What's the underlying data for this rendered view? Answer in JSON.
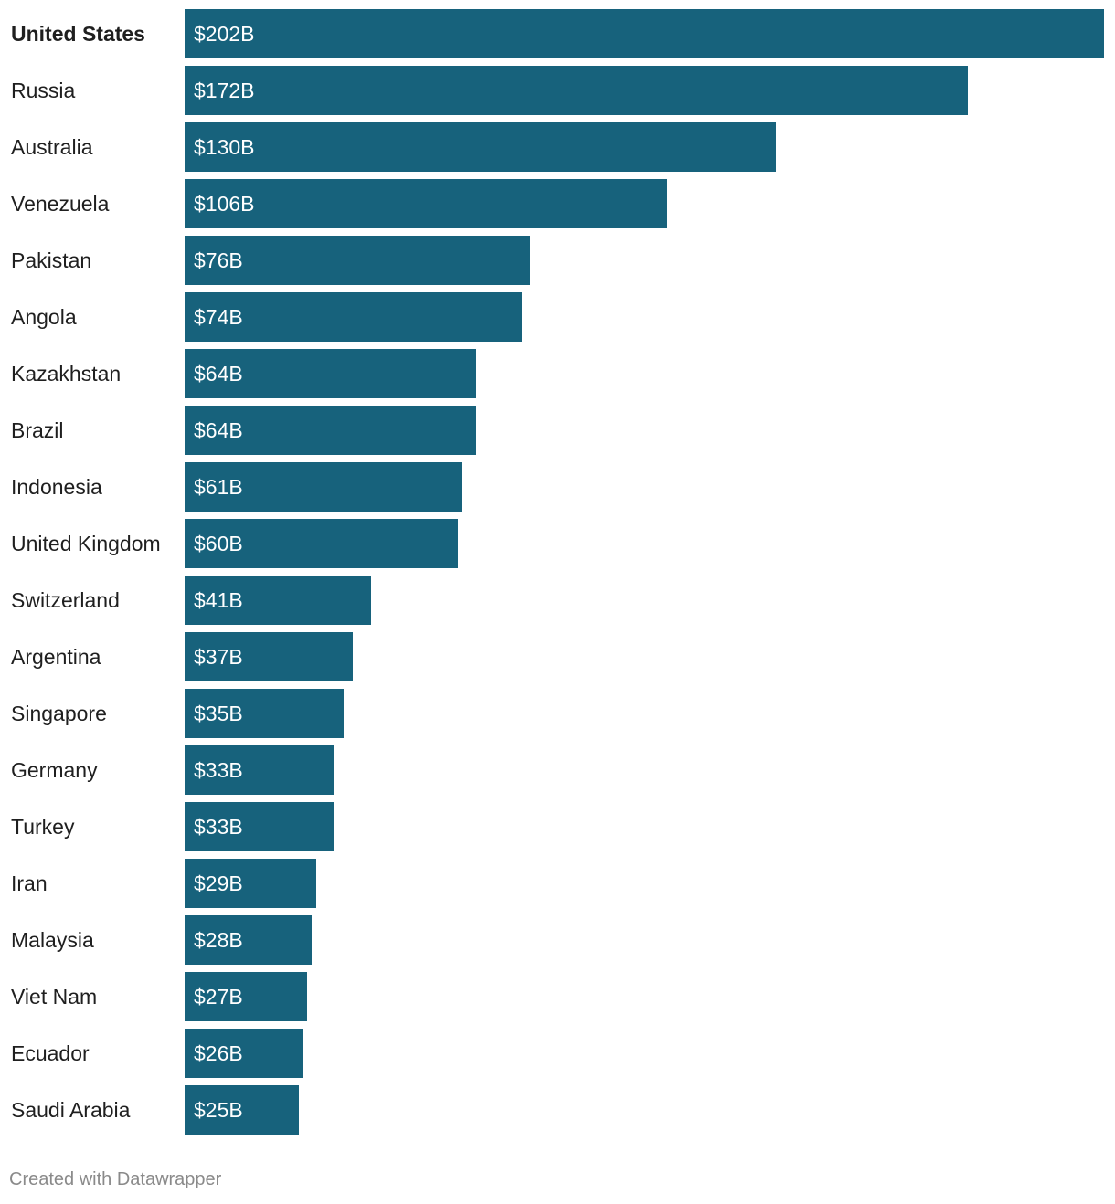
{
  "chart_data": {
    "type": "bar",
    "orientation": "horizontal",
    "title": "",
    "xlabel": "",
    "ylabel": "",
    "xlim": [
      0,
      202
    ],
    "grid": false,
    "bar_color": "#17627c",
    "categories": [
      "United States",
      "Russia",
      "Australia",
      "Venezuela",
      "Pakistan",
      "Angola",
      "Kazakhstan",
      "Brazil",
      "Indonesia",
      "United Kingdom",
      "Switzerland",
      "Argentina",
      "Singapore",
      "Germany",
      "Turkey",
      "Iran",
      "Malaysia",
      "Viet Nam",
      "Ecuador",
      "Saudi Arabia"
    ],
    "values": [
      202,
      172,
      130,
      106,
      76,
      74,
      64,
      64,
      61,
      60,
      41,
      37,
      35,
      33,
      33,
      29,
      28,
      27,
      26,
      25
    ],
    "value_labels": [
      "$202B",
      "$172B",
      "$130B",
      "$106B",
      "$76B",
      "$74B",
      "$64B",
      "$64B",
      "$61B",
      "$60B",
      "$41B",
      "$37B",
      "$35B",
      "$33B",
      "$33B",
      "$29B",
      "$28B",
      "$27B",
      "$26B",
      "$25B"
    ],
    "highlighted_category": "United States",
    "unit": "billion USD"
  },
  "footer": {
    "credit": "Created with Datawrapper"
  }
}
